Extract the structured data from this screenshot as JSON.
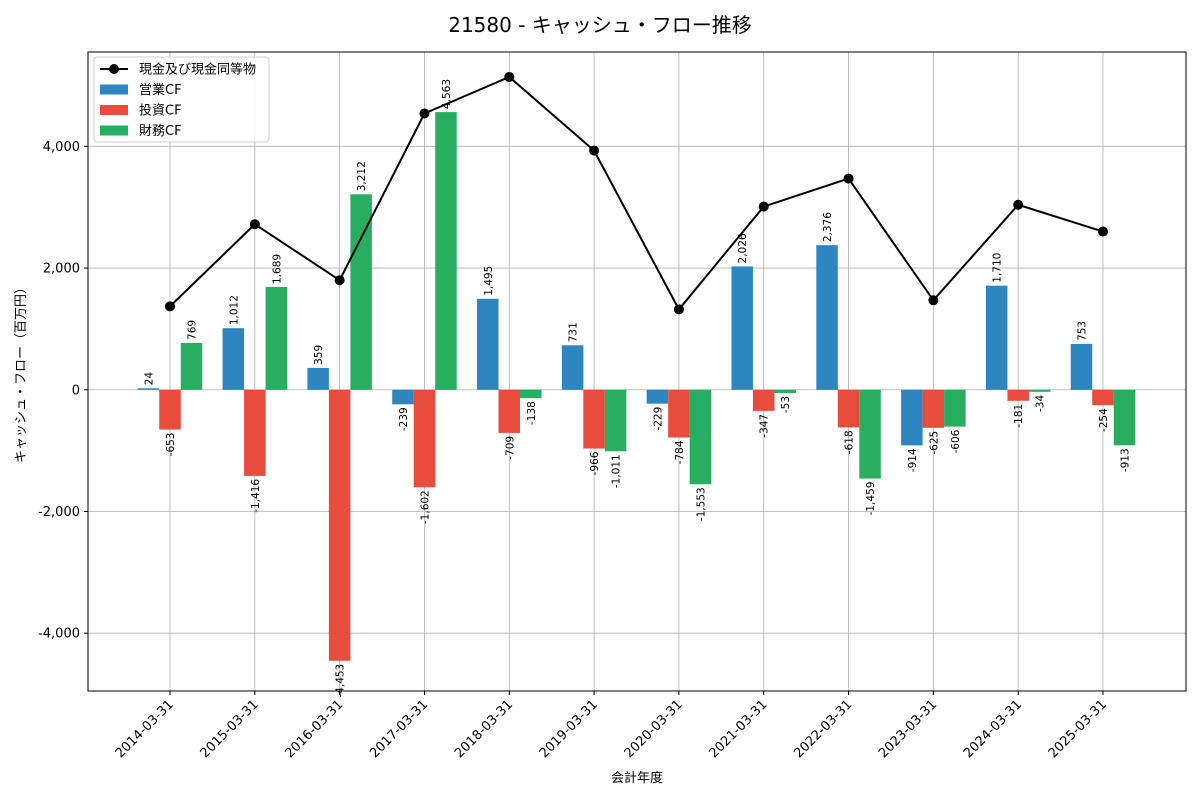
{
  "chart_data": {
    "type": "bar",
    "title": "21580 - キャッシュ・フロー推移",
    "xlabel": "会計年度",
    "ylabel": "キャッシュ・フロー（百万円）",
    "categories": [
      "2014-03-31",
      "2015-03-31",
      "2016-03-31",
      "2017-03-31",
      "2018-03-31",
      "2019-03-31",
      "2020-03-31",
      "2021-03-31",
      "2022-03-31",
      "2023-03-31",
      "2024-03-31",
      "2025-03-31"
    ],
    "ylim": [
      -4950,
      5550
    ],
    "yticks": [
      -4000,
      -2000,
      0,
      2000,
      4000
    ],
    "ytick_labels": [
      "-4,000",
      "-2,000",
      "0",
      "2,000",
      "4,000"
    ],
    "grid": true,
    "legend_position": "top-left",
    "series": [
      {
        "name": "営業CF",
        "kind": "bar",
        "color": "#2e86c1",
        "values": [
          24,
          1012,
          359,
          -239,
          1495,
          731,
          -229,
          2026,
          2376,
          -914,
          1710,
          753
        ],
        "labels": [
          "24",
          "1,012",
          "359",
          "-239",
          "1,495",
          "731",
          "-229",
          "2,026",
          "2,376",
          "-914",
          "1,710",
          "753"
        ]
      },
      {
        "name": "投資CF",
        "kind": "bar",
        "color": "#e74c3c",
        "values": [
          -653,
          -1416,
          -4453,
          -1602,
          -709,
          -966,
          -784,
          -347,
          -618,
          -625,
          -181,
          -254
        ],
        "labels": [
          "-653",
          "-1,416",
          "-4,453",
          "-1,602",
          "-709",
          "-966",
          "-784",
          "-347",
          "-618",
          "-625",
          "-181",
          "-254"
        ]
      },
      {
        "name": "財務CF",
        "kind": "bar",
        "color": "#27ae60",
        "values": [
          769,
          1689,
          3212,
          4563,
          -138,
          -1011,
          -1553,
          -53,
          -1459,
          -606,
          -34,
          -913
        ],
        "labels": [
          "769",
          "1,689",
          "3,212",
          "4,563",
          "-138",
          "-1,011",
          "-1,553",
          "-53",
          "-1,459",
          "-606",
          "-34",
          "-913"
        ]
      },
      {
        "name": "現金及び現金同等物",
        "kind": "line",
        "color": "#000000",
        "values": [
          1370,
          2720,
          1800,
          4540,
          5140,
          3930,
          1320,
          3010,
          3470,
          1470,
          3040,
          2600
        ]
      }
    ]
  }
}
